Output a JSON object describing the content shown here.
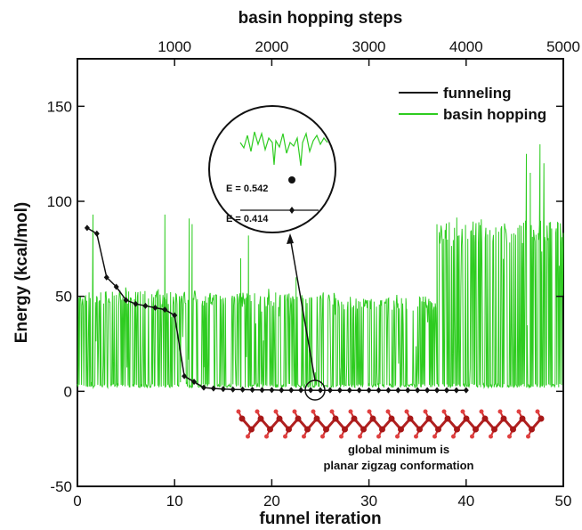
{
  "chart_data": {
    "type": "line",
    "xlabel": "funnel iteration",
    "x2label": "basin hopping steps",
    "ylabel": "Energy (kcal/mol)",
    "xlim": [
      0,
      50
    ],
    "x2lim": [
      0,
      5000
    ],
    "ylim": [
      -50,
      175
    ],
    "x_ticks": [
      "0",
      "10",
      "20",
      "30",
      "40",
      "50"
    ],
    "x2_ticks": [
      "1000",
      "2000",
      "3000",
      "4000",
      "5000"
    ],
    "y_ticks": [
      "-50",
      "0",
      "50",
      "100",
      "150"
    ],
    "legend_position": "top-right",
    "series": [
      {
        "name": "funneling",
        "color": "#111111",
        "marker": "diamond",
        "x": [
          1,
          2,
          3,
          4,
          5,
          6,
          7,
          8,
          9,
          10,
          11,
          12,
          13,
          14,
          15,
          16,
          17,
          18,
          19,
          20,
          21,
          22,
          23,
          24,
          25,
          26,
          27,
          28,
          29,
          30,
          31,
          32,
          33,
          34,
          35,
          36,
          37,
          38,
          39,
          40
        ],
        "y": [
          86,
          83,
          60,
          55,
          48,
          46,
          45,
          44,
          43,
          40,
          8,
          5,
          2,
          1.5,
          1.2,
          1,
          0.9,
          0.8,
          0.7,
          0.7,
          0.6,
          0.6,
          0.6,
          0.6,
          0.541,
          0.54,
          0.54,
          0.54,
          0.54,
          0.54,
          0.54,
          0.54,
          0.54,
          0.54,
          0.54,
          0.54,
          0.54,
          0.54,
          0.54,
          0.54
        ]
      },
      {
        "name": "basin hopping",
        "color": "#2ecc20",
        "x_axis": "top",
        "description_range": "fluctuates between ~2 and ~130 kcal/mol over 5000 steps",
        "segments": [
          {
            "x_start": 0,
            "x_end": 1300,
            "low": 2,
            "high": 53,
            "spikes": [
              [
                160,
                93
              ],
              [
                900,
                93
              ],
              [
                1150,
                91
              ],
              [
                1180,
                88
              ]
            ]
          },
          {
            "x_start": 1300,
            "x_end": 2100,
            "low": 2,
            "high": 52,
            "spikes": [
              [
                1680,
                70
              ],
              [
                1760,
                82
              ],
              [
                2040,
                52
              ]
            ]
          },
          {
            "x_start": 2100,
            "x_end": 2700,
            "low": 2,
            "high": 52,
            "spikes": [
              [
                2250,
                60
              ],
              [
                2530,
                52
              ]
            ]
          },
          {
            "x_start": 2700,
            "x_end": 3700,
            "low": 2,
            "high": 50,
            "spikes": [
              [
                3380,
                49
              ]
            ]
          },
          {
            "x_start": 3700,
            "x_end": 5000,
            "low": 2,
            "high": 90,
            "spikes": [
              [
                4620,
                125
              ],
              [
                4660,
                115
              ],
              [
                4760,
                130
              ],
              [
                4800,
                120
              ]
            ]
          }
        ]
      }
    ],
    "annotations": [
      {
        "text": "E = 0.542",
        "where": "inset"
      },
      {
        "text": "E = 0.414",
        "where": "inset"
      },
      {
        "text": "global minimum is",
        "where": "bottom-right"
      },
      {
        "text": "planar zigzag conformation",
        "where": "bottom-right"
      }
    ],
    "inset": {
      "shape": "circle",
      "points_to": {
        "x": 25,
        "y": 0.54
      },
      "contains": "zoomed view of the basin hopping trace and the minimum energies"
    }
  }
}
